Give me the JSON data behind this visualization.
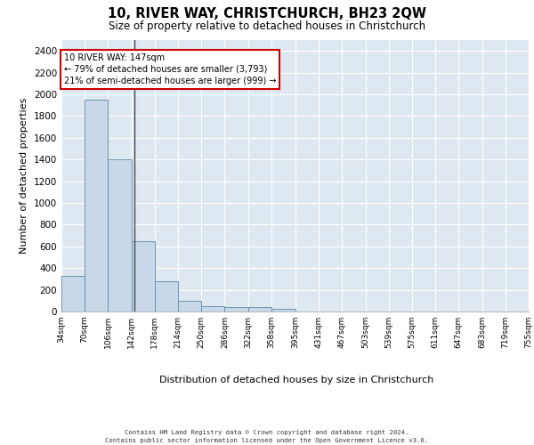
{
  "title": "10, RIVER WAY, CHRISTCHURCH, BH23 2QW",
  "subtitle": "Size of property relative to detached houses in Christchurch",
  "xlabel": "Distribution of detached houses by size in Christchurch",
  "ylabel": "Number of detached properties",
  "bin_edges": [
    34,
    70,
    106,
    142,
    178,
    214,
    250,
    286,
    322,
    358,
    395,
    431,
    467,
    503,
    539,
    575,
    611,
    647,
    683,
    719,
    755
  ],
  "bar_heights": [
    325,
    1950,
    1400,
    650,
    275,
    100,
    50,
    40,
    40,
    25,
    0,
    0,
    0,
    0,
    0,
    0,
    0,
    0,
    0,
    0
  ],
  "bar_color": "#c8d8e8",
  "bar_edge_color": "#5a8aaa",
  "property_size": 147,
  "vline_color": "#444444",
  "annotation_text": "10 RIVER WAY: 147sqm\n← 79% of detached houses are smaller (3,793)\n21% of semi-detached houses are larger (999) →",
  "annotation_box_color": "#ffffff",
  "annotation_box_edge_color": "#cc0000",
  "ylim": [
    0,
    2500
  ],
  "yticks": [
    0,
    200,
    400,
    600,
    800,
    1000,
    1200,
    1400,
    1600,
    1800,
    2000,
    2200,
    2400
  ],
  "background_color": "#dde8f0",
  "footer_line1": "Contains HM Land Registry data © Crown copyright and database right 2024.",
  "footer_line2": "Contains public sector information licensed under the Open Government Licence v3.0."
}
